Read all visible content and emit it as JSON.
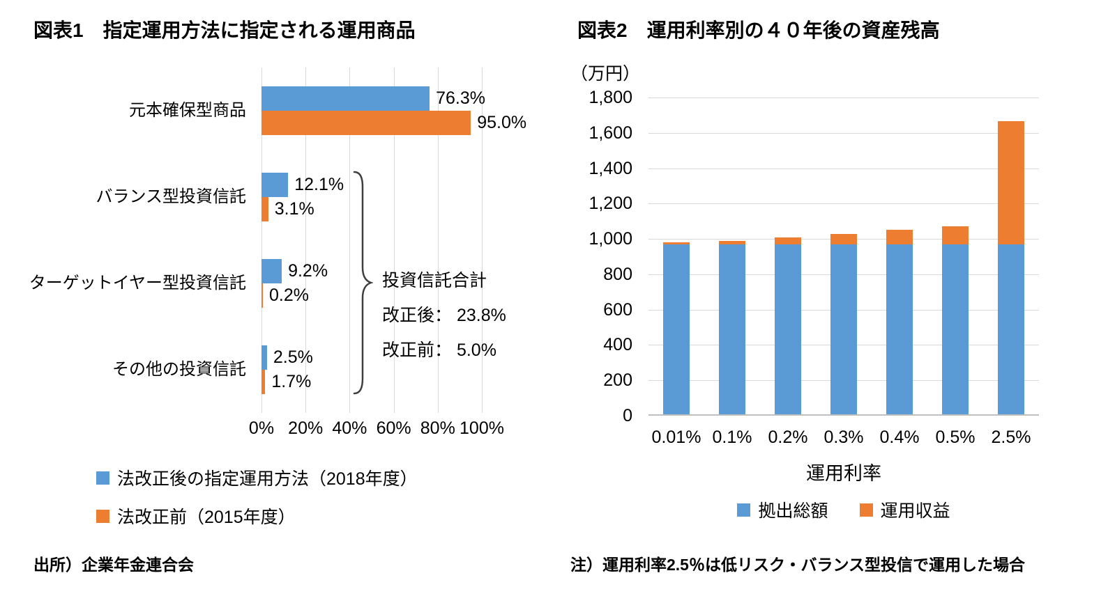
{
  "page": {
    "source_note": "出所）企業年金連合会",
    "footnote": "注）運用利率2.5％は低リスク・バランス型投信で運用した場合"
  },
  "colors": {
    "series_blue": "#5B9BD5",
    "series_orange": "#ED7D31",
    "gridline": "#D9D9D9",
    "text": "#000000"
  },
  "chart_data": [
    {
      "type": "bar",
      "orientation": "horizontal",
      "title": "図表1　指定運用方法に指定される運用商品",
      "categories": [
        "元本確保型商品",
        "バランス型投資信託",
        "ターゲットイヤー型投資信託",
        "その他の投資信託"
      ],
      "series": [
        {
          "name": "法改正後の指定運用方法（2018年度）",
          "color": "#5B9BD5",
          "values": [
            76.3,
            12.1,
            9.2,
            2.5
          ],
          "labels": [
            "76.3%",
            "12.1%",
            "9.2%",
            "2.5%"
          ]
        },
        {
          "name": "法改正前（2015年度）",
          "color": "#ED7D31",
          "values": [
            95.0,
            3.1,
            0.2,
            1.7
          ],
          "labels": [
            "95.0%",
            "3.1%",
            "0.2%",
            "1.7%"
          ]
        }
      ],
      "xlim": [
        0,
        100
      ],
      "x_ticks": [
        "0%",
        "20%",
        "40%",
        "60%",
        "80%",
        "100%"
      ],
      "grid": "vertical",
      "legend_position": "bottom",
      "annotation": [
        "投資信託合計",
        "改正後： 23.8%",
        "改正前：  5.0%"
      ]
    },
    {
      "type": "bar",
      "stacked": true,
      "title": "図表2　運用利率別の４０年後の資産残高",
      "unit_label": "（万円）",
      "categories": [
        "0.01%",
        "0.1%",
        "0.2%",
        "0.3%",
        "0.4%",
        "0.5%",
        "2.5%"
      ],
      "series": [
        {
          "name": "拠出総額",
          "color": "#5B9BD5",
          "values": [
            960,
            960,
            960,
            960,
            960,
            960,
            960
          ]
        },
        {
          "name": "運用収益",
          "color": "#ED7D31",
          "values": [
            13,
            22,
            42,
            62,
            82,
            102,
            697
          ]
        }
      ],
      "ylim": [
        0,
        1800
      ],
      "y_ticks": [
        "1,800",
        "1,600",
        "1,400",
        "1,200",
        "1,000",
        "800",
        "600",
        "400",
        "200",
        "0"
      ],
      "y_tick_values": [
        1800,
        1600,
        1400,
        1200,
        1000,
        800,
        600,
        400,
        200,
        0
      ],
      "xlabel": "運用利率",
      "grid": "horizontal",
      "legend_position": "bottom"
    }
  ]
}
